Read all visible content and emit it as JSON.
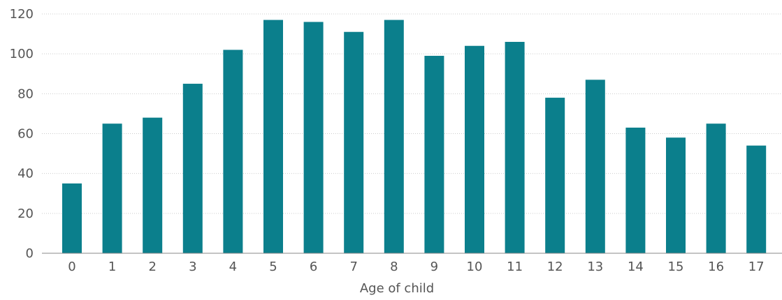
{
  "chart_data": {
    "type": "bar",
    "categories": [
      "0",
      "1",
      "2",
      "3",
      "4",
      "5",
      "6",
      "7",
      "8",
      "9",
      "10",
      "11",
      "12",
      "13",
      "14",
      "15",
      "16",
      "17"
    ],
    "values": [
      35,
      65,
      68,
      85,
      102,
      117,
      116,
      111,
      117,
      99,
      104,
      106,
      78,
      87,
      63,
      58,
      65,
      54
    ],
    "xlabel": "Age of child",
    "ylabel": "",
    "ylim": [
      0,
      120
    ],
    "yticks": [
      0,
      20,
      40,
      60,
      80,
      100,
      120
    ],
    "grid": true,
    "bar_color": "#0b7f8c",
    "grid_color": "#cccccc",
    "axis_color": "#888888"
  }
}
